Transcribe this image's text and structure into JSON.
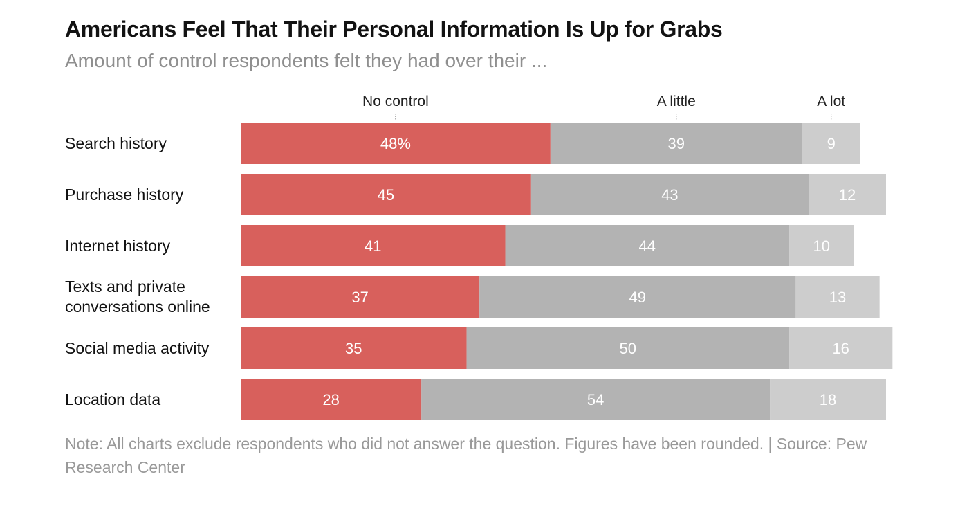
{
  "title": "Americans Feel That Their Personal Information Is Up for Grabs",
  "subtitle": "Amount of control respondents felt they had over their ...",
  "note": "Note: All charts exclude respondents who did not answer the question. Figures have been rounded. | Source: Pew Research Center",
  "colors": {
    "no_control": "#d8605c",
    "a_little": "#b3b3b3",
    "a_lot": "#cdcdcd"
  },
  "chart_data": {
    "type": "bar",
    "orientation": "horizontal",
    "stacked": true,
    "categories": [
      "Search history",
      "Purchase history",
      "Internet history",
      "Texts and private conversations online",
      "Social media activity",
      "Location data"
    ],
    "series": [
      {
        "name": "No control",
        "values": [
          48,
          45,
          41,
          37,
          35,
          28
        ]
      },
      {
        "name": "A little",
        "values": [
          39,
          43,
          44,
          49,
          50,
          54
        ]
      },
      {
        "name": "A lot",
        "values": [
          9,
          12,
          10,
          13,
          16,
          18
        ]
      }
    ],
    "first_label_suffix": "%",
    "unit": "percent",
    "legend_position": "top"
  }
}
